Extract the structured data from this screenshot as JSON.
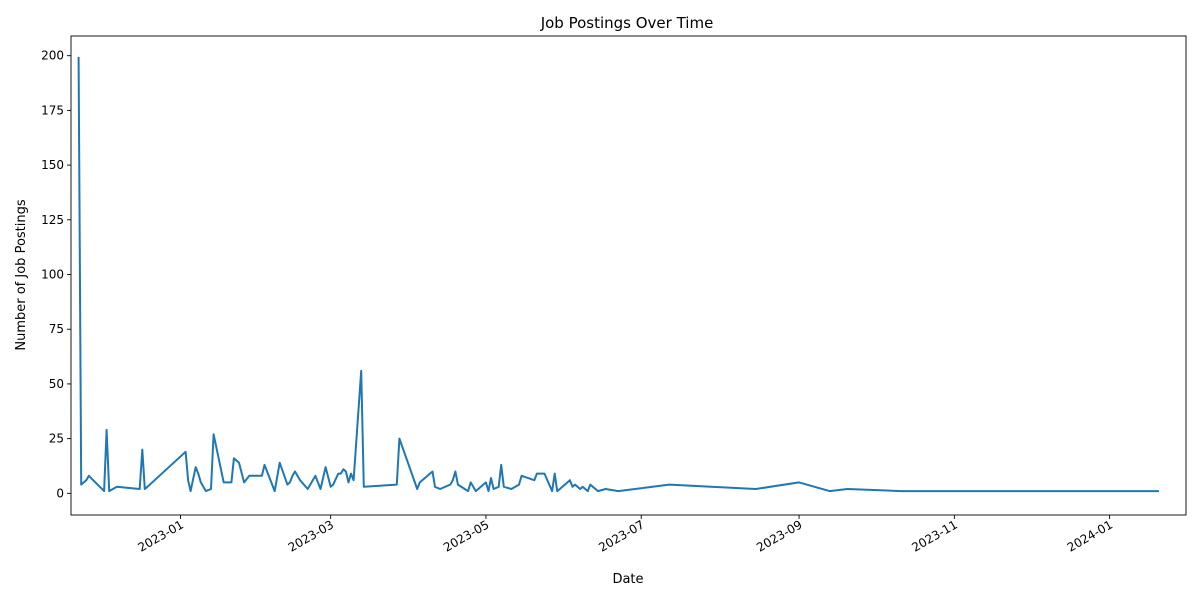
{
  "chart_data": {
    "type": "line",
    "title": "Job Postings Over Time",
    "xlabel": "Date",
    "ylabel": "Number of Job Postings",
    "x_ticks": [
      "2023-01",
      "2023-03",
      "2023-05",
      "2023-07",
      "2023-09",
      "2023-11",
      "2024-01"
    ],
    "y_ticks": [
      0,
      25,
      50,
      75,
      100,
      125,
      150,
      175,
      200
    ],
    "ylim": [
      -9.9,
      209
    ],
    "xlim": [
      "2022-11-19",
      "2024-01-31"
    ],
    "grid": false,
    "series_color": "#1f77b4",
    "series": [
      {
        "x": [
          "2022-11-22",
          "2022-11-23",
          "2022-11-25",
          "2022-11-26",
          "2022-12-02",
          "2022-12-03",
          "2022-12-04",
          "2022-12-07",
          "2022-12-16",
          "2022-12-17",
          "2022-12-18",
          "2022-12-19",
          "2023-01-03",
          "2023-01-04",
          "2023-01-05",
          "2023-01-07",
          "2023-01-08",
          "2023-01-09",
          "2023-01-11",
          "2023-01-13",
          "2023-01-14",
          "2023-01-18",
          "2023-01-21",
          "2023-01-22",
          "2023-01-23",
          "2023-01-24",
          "2023-01-26",
          "2023-01-28",
          "2023-02-02",
          "2023-02-03",
          "2023-02-07",
          "2023-02-09",
          "2023-02-12",
          "2023-02-13",
          "2023-02-14",
          "2023-02-15",
          "2023-02-17",
          "2023-02-20",
          "2023-02-22",
          "2023-02-23",
          "2023-02-25",
          "2023-02-27",
          "2023-03-01",
          "2023-03-02",
          "2023-03-04",
          "2023-03-05",
          "2023-03-06",
          "2023-03-07",
          "2023-03-08",
          "2023-03-09",
          "2023-03-10",
          "2023-03-13",
          "2023-03-14",
          "2023-03-27",
          "2023-03-28",
          "2023-04-04",
          "2023-04-05",
          "2023-04-10",
          "2023-04-11",
          "2023-04-13",
          "2023-04-17",
          "2023-04-18",
          "2023-04-19",
          "2023-04-20",
          "2023-04-24",
          "2023-04-25",
          "2023-04-27",
          "2023-05-01",
          "2023-05-02",
          "2023-05-03",
          "2023-05-04",
          "2023-05-06",
          "2023-05-07",
          "2023-05-08",
          "2023-05-11",
          "2023-05-14",
          "2023-05-15",
          "2023-05-20",
          "2023-05-21",
          "2023-05-24",
          "2023-05-27",
          "2023-05-28",
          "2023-05-29",
          "2023-05-30",
          "2023-06-03",
          "2023-06-04",
          "2023-06-05",
          "2023-06-06",
          "2023-06-07",
          "2023-06-08",
          "2023-06-10",
          "2023-06-11",
          "2023-06-12",
          "2023-06-14",
          "2023-06-17",
          "2023-06-22",
          "2023-07-12",
          "2023-08-15",
          "2023-09-01",
          "2023-09-13",
          "2023-09-20",
          "2023-10-11",
          "2023-11-09",
          "2024-01-20"
        ],
        "y": [
          199,
          4,
          6,
          8,
          1,
          29,
          1,
          3,
          2,
          20,
          2,
          3,
          19,
          6,
          1,
          12,
          9,
          5,
          1,
          2,
          27,
          5,
          5,
          16,
          15,
          14,
          5,
          8,
          8,
          13,
          1,
          14,
          4,
          5,
          8,
          10,
          6,
          2,
          6,
          8,
          2,
          12,
          3,
          4,
          9,
          9,
          11,
          10,
          5,
          9,
          6,
          56,
          3,
          4,
          25,
          2,
          5,
          10,
          3,
          2,
          4,
          6,
          10,
          4,
          1,
          5,
          1,
          5,
          1,
          7,
          2,
          3,
          13,
          3,
          2,
          4,
          8,
          6,
          9,
          9,
          1,
          9,
          1,
          2,
          6,
          3,
          4,
          3,
          2,
          3,
          1,
          4,
          3,
          1,
          2,
          1,
          4,
          2,
          5,
          1,
          2,
          1,
          1,
          1
        ]
      }
    ]
  }
}
